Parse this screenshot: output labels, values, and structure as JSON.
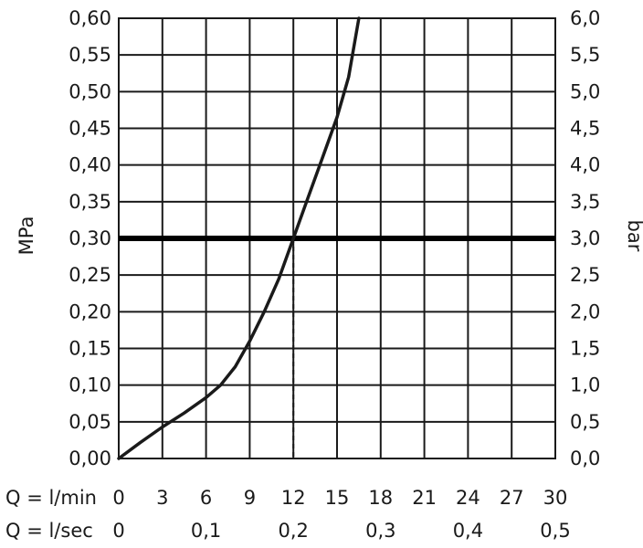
{
  "chart_data": {
    "type": "line",
    "title": "",
    "ylabel_left": "MPa",
    "ylabel_right": "bar",
    "xlabel_primary": "Q = l/min",
    "xlabel_secondary": "Q = l/sec",
    "x_ticks_lmin": [
      "0",
      "3",
      "6",
      "9",
      "12",
      "15",
      "18",
      "21",
      "24",
      "27",
      "30"
    ],
    "x_ticks_lsec": [
      "0",
      "0,1",
      "0,2",
      "0,3",
      "0,4",
      "0,5"
    ],
    "x_ticks_lsec_values": [
      0,
      6,
      12,
      18,
      24,
      30
    ],
    "y_ticks_mpa": [
      "0,00",
      "0,05",
      "0,10",
      "0,15",
      "0,20",
      "0,25",
      "0,30",
      "0,35",
      "0,40",
      "0,45",
      "0,50",
      "0,55",
      "0,60"
    ],
    "y_ticks_bar": [
      "0,0",
      "0,5",
      "1,0",
      "1,5",
      "2,0",
      "2,5",
      "3,0",
      "3,5",
      "4,0",
      "4,5",
      "5,0",
      "5,5",
      "6,0"
    ],
    "xlim": [
      0,
      30
    ],
    "ylim": [
      0,
      0.6
    ],
    "grid": true,
    "series": [
      {
        "color": "#1a1a1a",
        "x": [
          0,
          1.5,
          3,
          4.5,
          6,
          7,
          8,
          9,
          10,
          11,
          12,
          13,
          14,
          15,
          15.8,
          16.5
        ],
        "y": [
          0,
          0.022,
          0.043,
          0.062,
          0.083,
          0.1,
          0.125,
          0.16,
          0.2,
          0.245,
          0.3,
          0.355,
          0.41,
          0.465,
          0.52,
          0.6
        ]
      }
    ],
    "reference_line": {
      "y": 0.3,
      "color": "#000000"
    },
    "marker_line": {
      "x": 12,
      "y": 0.3,
      "style": "dashed"
    }
  }
}
